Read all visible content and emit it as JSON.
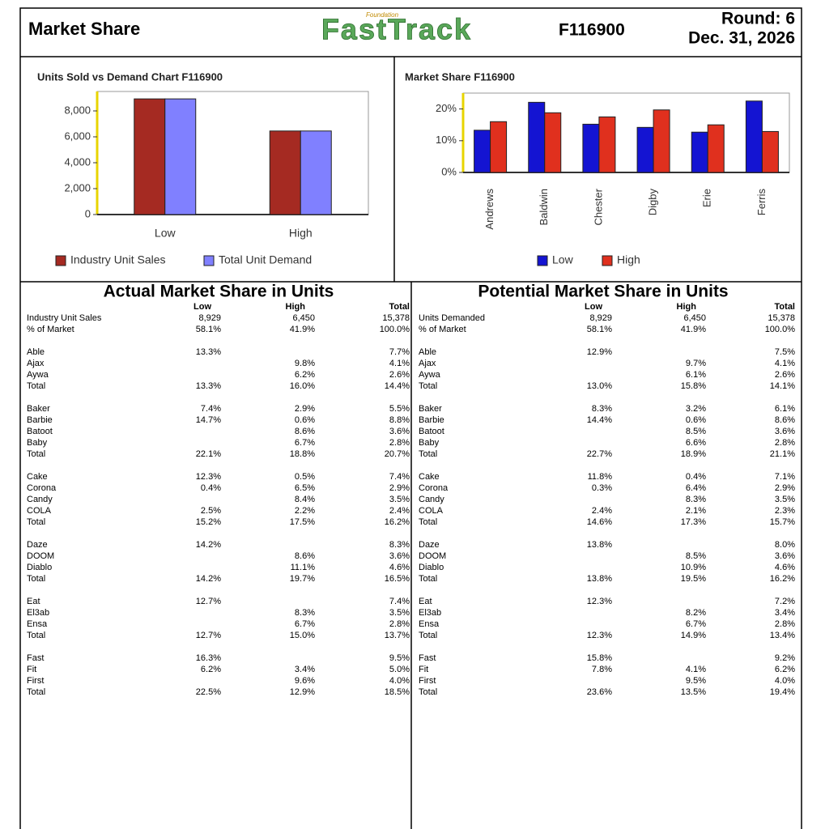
{
  "header": {
    "title": "Market Share",
    "logo": {
      "brand": "FastTrack",
      "tagline": "Foundation"
    },
    "team": "F116900",
    "round": "Round: 6",
    "date": "Dec. 31, 2026"
  },
  "chart_data": [
    {
      "type": "bar",
      "title": "Units Sold vs Demand Chart  F116900",
      "categories": [
        "Low",
        "High"
      ],
      "series": [
        {
          "name": "Industry Unit Sales",
          "color": "#a52a22",
          "values": [
            8929,
            6450
          ]
        },
        {
          "name": "Total Unit Demand",
          "color": "#8080ff",
          "values": [
            8929,
            6450
          ]
        }
      ],
      "ylim": [
        0,
        9500
      ],
      "yticks": [
        0,
        {
          "value": 2000,
          "label": "2,000"
        },
        {
          "value": 4000,
          "label": "4,000"
        },
        {
          "value": 6000,
          "label": "6,000"
        },
        {
          "value": 8000,
          "label": "8,000"
        }
      ],
      "grid": false
    },
    {
      "type": "bar",
      "title": "Market Share  F116900",
      "categories": [
        "Andrews",
        "Baldwin",
        "Chester",
        "Digby",
        "Erie",
        "Ferris"
      ],
      "series": [
        {
          "name": "Low",
          "color": "#1414d2",
          "values": [
            13.3,
            22.1,
            15.2,
            14.2,
            12.7,
            22.5
          ]
        },
        {
          "name": "High",
          "color": "#e0301e",
          "values": [
            16.0,
            18.8,
            17.5,
            19.7,
            15.0,
            12.9
          ]
        }
      ],
      "ylim": [
        0,
        25
      ],
      "yticks": [
        {
          "value": 0,
          "label": "0%"
        },
        {
          "value": 10,
          "label": "10%"
        },
        {
          "value": 20,
          "label": "20%"
        }
      ],
      "grid": false
    }
  ],
  "tables": [
    {
      "title": "Actual Market Share in Units",
      "columns": [
        "Low",
        "High",
        "Total"
      ],
      "summary": [
        [
          "Industry Unit Sales",
          "8,929",
          "6,450",
          "15,378"
        ],
        [
          "% of Market",
          "58.1%",
          "41.9%",
          "100.0%"
        ]
      ],
      "groups": [
        [
          [
            "Able",
            "13.3%",
            null,
            "7.7%"
          ],
          [
            "Ajax",
            null,
            "9.8%",
            "4.1%"
          ],
          [
            "Aywa",
            null,
            "6.2%",
            "2.6%"
          ],
          [
            "Total",
            "13.3%",
            "16.0%",
            "14.4%"
          ]
        ],
        [
          [
            "Baker",
            "7.4%",
            "2.9%",
            "5.5%"
          ],
          [
            "Barbie",
            "14.7%",
            "0.6%",
            "8.8%"
          ],
          [
            "Batoot",
            null,
            "8.6%",
            "3.6%"
          ],
          [
            "Baby",
            null,
            "6.7%",
            "2.8%"
          ],
          [
            "Total",
            "22.1%",
            "18.8%",
            "20.7%"
          ]
        ],
        [
          [
            "Cake",
            "12.3%",
            "0.5%",
            "7.4%"
          ],
          [
            "Corona",
            "0.4%",
            "6.5%",
            "2.9%"
          ],
          [
            "Candy",
            null,
            "8.4%",
            "3.5%"
          ],
          [
            "COLA",
            "2.5%",
            "2.2%",
            "2.4%"
          ],
          [
            "Total",
            "15.2%",
            "17.5%",
            "16.2%"
          ]
        ],
        [
          [
            "Daze",
            "14.2%",
            null,
            "8.3%"
          ],
          [
            "DOOM",
            null,
            "8.6%",
            "3.6%"
          ],
          [
            "Diablo",
            null,
            "11.1%",
            "4.6%"
          ],
          [
            "Total",
            "14.2%",
            "19.7%",
            "16.5%"
          ]
        ],
        [
          [
            "Eat",
            "12.7%",
            null,
            "7.4%"
          ],
          [
            "El3ab",
            null,
            "8.3%",
            "3.5%"
          ],
          [
            "Ensa",
            null,
            "6.7%",
            "2.8%"
          ],
          [
            "Total",
            "12.7%",
            "15.0%",
            "13.7%"
          ]
        ],
        [
          [
            "Fast",
            "16.3%",
            null,
            "9.5%"
          ],
          [
            "Fit",
            "6.2%",
            "3.4%",
            "5.0%"
          ],
          [
            "First",
            null,
            "9.6%",
            "4.0%"
          ],
          [
            "Total",
            "22.5%",
            "12.9%",
            "18.5%"
          ]
        ]
      ]
    },
    {
      "title": "Potential Market Share in Units",
      "columns": [
        "Low",
        "High",
        "Total"
      ],
      "summary": [
        [
          "Units Demanded",
          "8,929",
          "6,450",
          "15,378"
        ],
        [
          "% of Market",
          "58.1%",
          "41.9%",
          "100.0%"
        ]
      ],
      "groups": [
        [
          [
            "Able",
            "12.9%",
            null,
            "7.5%"
          ],
          [
            "Ajax",
            null,
            "9.7%",
            "4.1%"
          ],
          [
            "Aywa",
            null,
            "6.1%",
            "2.6%"
          ],
          [
            "Total",
            "13.0%",
            "15.8%",
            "14.1%"
          ]
        ],
        [
          [
            "Baker",
            "8.3%",
            "3.2%",
            "6.1%"
          ],
          [
            "Barbie",
            "14.4%",
            "0.6%",
            "8.6%"
          ],
          [
            "Batoot",
            null,
            "8.5%",
            "3.6%"
          ],
          [
            "Baby",
            null,
            "6.6%",
            "2.8%"
          ],
          [
            "Total",
            "22.7%",
            "18.9%",
            "21.1%"
          ]
        ],
        [
          [
            "Cake",
            "11.8%",
            "0.4%",
            "7.1%"
          ],
          [
            "Corona",
            "0.3%",
            "6.4%",
            "2.9%"
          ],
          [
            "Candy",
            null,
            "8.3%",
            "3.5%"
          ],
          [
            "COLA",
            "2.4%",
            "2.1%",
            "2.3%"
          ],
          [
            "Total",
            "14.6%",
            "17.3%",
            "15.7%"
          ]
        ],
        [
          [
            "Daze",
            "13.8%",
            null,
            "8.0%"
          ],
          [
            "DOOM",
            null,
            "8.5%",
            "3.6%"
          ],
          [
            "Diablo",
            null,
            "10.9%",
            "4.6%"
          ],
          [
            "Total",
            "13.8%",
            "19.5%",
            "16.2%"
          ]
        ],
        [
          [
            "Eat",
            "12.3%",
            null,
            "7.2%"
          ],
          [
            "El3ab",
            null,
            "8.2%",
            "3.4%"
          ],
          [
            "Ensa",
            null,
            "6.7%",
            "2.8%"
          ],
          [
            "Total",
            "12.3%",
            "14.9%",
            "13.4%"
          ]
        ],
        [
          [
            "Fast",
            "15.8%",
            null,
            "9.2%"
          ],
          [
            "Fit",
            "7.8%",
            "4.1%",
            "6.2%"
          ],
          [
            "First",
            null,
            "9.5%",
            "4.0%"
          ],
          [
            "Total",
            "23.6%",
            "13.5%",
            "19.4%"
          ]
        ]
      ]
    }
  ]
}
